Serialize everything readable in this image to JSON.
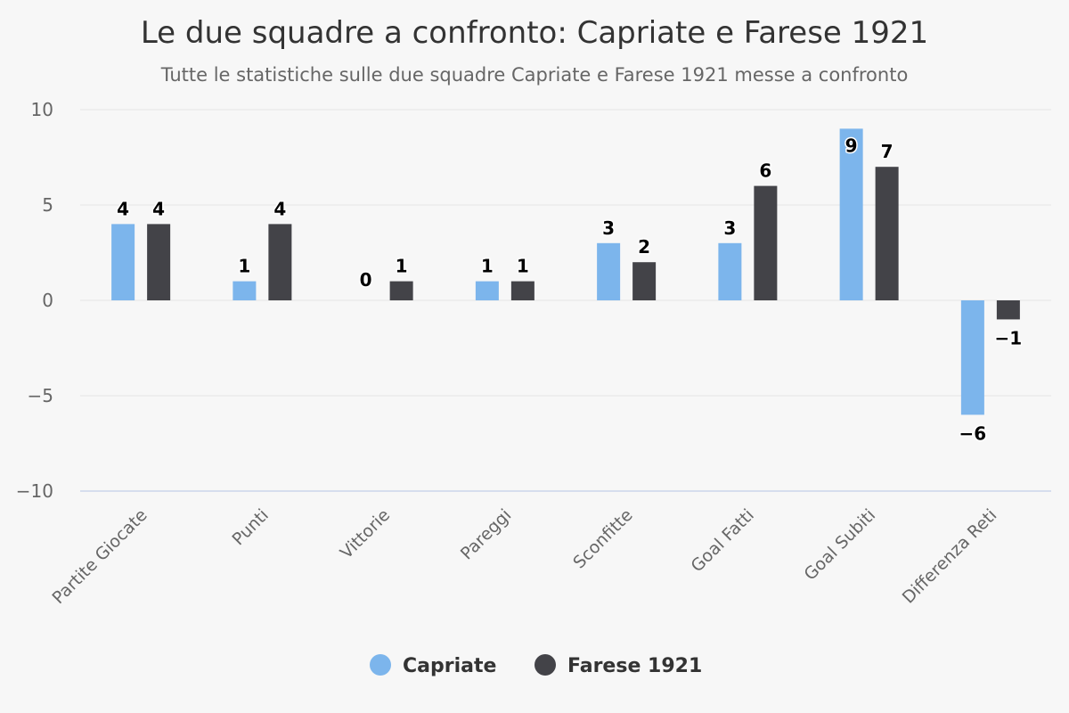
{
  "chart_data": {
    "type": "bar",
    "title": "Le due squadre a confronto: Capriate e Farese 1921",
    "subtitle": "Tutte le statistiche sulle due squadre Capriate e Farese 1921 messe a confronto",
    "categories": [
      "Partite Giocate",
      "Punti",
      "Vittorie",
      "Pareggi",
      "Sconfitte",
      "Goal Fatti",
      "Goal Subiti",
      "Differenza Reti"
    ],
    "series": [
      {
        "name": "Capriate",
        "color": "#7cb5ec",
        "values": [
          4,
          1,
          0,
          1,
          3,
          3,
          9,
          -6
        ]
      },
      {
        "name": "Farese 1921",
        "color": "#434348",
        "values": [
          4,
          4,
          1,
          1,
          2,
          6,
          7,
          -1
        ]
      }
    ],
    "ylim": [
      -10,
      10
    ],
    "yticks": [
      10,
      5,
      0,
      -5,
      -10
    ],
    "ytick_labels": [
      "10",
      "5",
      "0",
      "−5",
      "−10"
    ],
    "xlabel": "",
    "ylabel": "",
    "grid": true,
    "legend": "bottom-center"
  }
}
